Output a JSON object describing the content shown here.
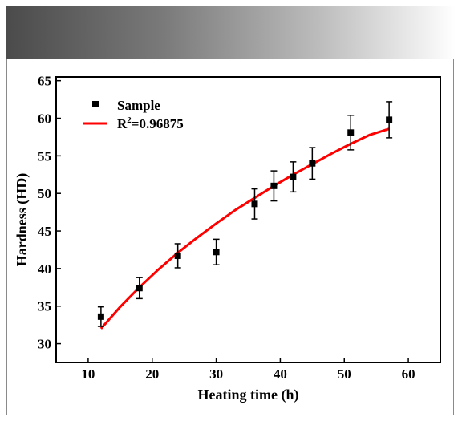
{
  "chart_data": {
    "type": "scatter",
    "xlabel": "Heating time (h)",
    "ylabel": "Hardness (HD)",
    "xlim": [
      5,
      65
    ],
    "ylim": [
      27.5,
      65.5
    ],
    "x_ticks": [
      10,
      20,
      30,
      40,
      50,
      60
    ],
    "y_ticks": [
      30,
      35,
      40,
      45,
      50,
      55,
      60,
      65
    ],
    "legend_position": "top-left",
    "series": [
      {
        "name": "Sample",
        "marker": "square",
        "color": "#000000",
        "x": [
          12,
          18,
          24,
          30,
          36,
          39,
          42,
          45,
          51,
          57
        ],
        "y": [
          33.6,
          37.4,
          41.7,
          42.2,
          48.6,
          51.0,
          52.2,
          54.0,
          58.1,
          59.8
        ],
        "error": [
          1.3,
          1.4,
          1.6,
          1.7,
          2.0,
          2.0,
          2.0,
          2.1,
          2.3,
          2.4
        ]
      },
      {
        "name_prefix": "R",
        "name_sup": "2",
        "name_suffix": "=0.96875",
        "type": "line",
        "color": "#ff0000",
        "x": [
          12,
          15,
          18,
          21,
          24,
          27,
          30,
          33,
          36,
          39,
          42,
          45,
          48,
          51,
          54,
          57
        ],
        "y": [
          32.0,
          34.9,
          37.5,
          39.9,
          42.1,
          44.1,
          46.0,
          47.8,
          49.4,
          51.0,
          52.5,
          53.9,
          55.3,
          56.6,
          57.8,
          58.6
        ]
      }
    ]
  }
}
